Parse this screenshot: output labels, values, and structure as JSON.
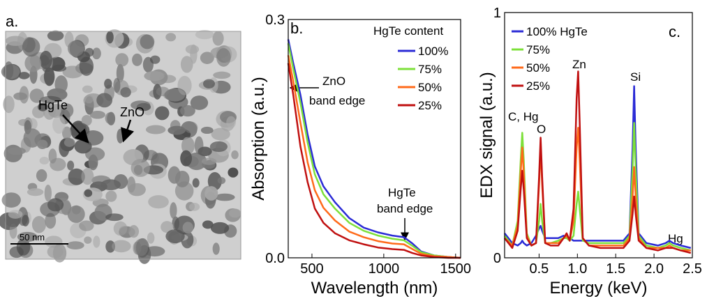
{
  "image_panel": {
    "label": "a.",
    "annotations": [
      "HgTe",
      "ZnO"
    ],
    "scale_bar": "50 nm"
  },
  "chart_data": [
    {
      "type": "line",
      "panel_label": "b.",
      "x_label": "Wavelength (nm)",
      "y_label": "Absorption (a.u.)",
      "legend_title": "HgTe content",
      "annotations": [
        "ZnO",
        "band edge",
        "HgTe",
        "band edge"
      ],
      "xlim": [
        335,
        1535
      ],
      "ylim": [
        0,
        0.3
      ],
      "xticks": [
        500,
        1000,
        1500
      ],
      "yticks": [
        {
          "value": 0,
          "label": "0.0"
        },
        0.3
      ],
      "x": [
        335,
        370,
        420,
        470,
        520,
        580,
        660,
        760,
        860,
        960,
        1060,
        1140,
        1200,
        1260,
        1350,
        1450,
        1535
      ],
      "series": [
        {
          "name": "100%",
          "color": "#2b2bd6",
          "values": [
            0.275,
            0.245,
            0.205,
            0.155,
            0.115,
            0.09,
            0.07,
            0.05,
            0.038,
            0.032,
            0.028,
            0.026,
            0.018,
            0.008,
            0.003,
            0.001,
            0
          ]
        },
        {
          "name": "75%",
          "color": "#7de03a",
          "values": [
            0.27,
            0.238,
            0.195,
            0.145,
            0.105,
            0.08,
            0.062,
            0.044,
            0.034,
            0.028,
            0.024,
            0.022,
            0.015,
            0.007,
            0.003,
            0.001,
            0
          ]
        },
        {
          "name": "50%",
          "color": "#ff6a1a",
          "values": [
            0.255,
            0.222,
            0.17,
            0.12,
            0.085,
            0.063,
            0.047,
            0.033,
            0.026,
            0.021,
            0.018,
            0.017,
            0.011,
            0.005,
            0.002,
            0.001,
            0
          ]
        },
        {
          "name": "25%",
          "color": "#c01010",
          "values": [
            0.245,
            0.205,
            0.14,
            0.095,
            0.062,
            0.044,
            0.031,
            0.022,
            0.017,
            0.013,
            0.011,
            0.01,
            0.006,
            0.003,
            0.001,
            0,
            0
          ]
        }
      ]
    },
    {
      "type": "line",
      "panel_label": "c.",
      "x_label": "Energy (keV)",
      "y_label": "EDX signal (a.u.)",
      "annotations": [
        "C, Hg",
        "O",
        "Zn",
        "Si",
        "Hg"
      ],
      "xlim": [
        0.05,
        2.5
      ],
      "ylim": [
        0,
        1
      ],
      "xticks": [
        0.5,
        {
          "value": 1,
          "label": "1.0"
        },
        1.5,
        {
          "value": 2,
          "label": "2.0"
        },
        2.5
      ],
      "yticks": [
        0,
        1
      ],
      "x": [
        0.05,
        0.15,
        0.22,
        0.26,
        0.28,
        0.3,
        0.34,
        0.4,
        0.46,
        0.5,
        0.52,
        0.54,
        0.58,
        0.65,
        0.75,
        0.82,
        0.86,
        0.9,
        0.95,
        0.99,
        1.01,
        1.03,
        1.07,
        1.15,
        1.3,
        1.45,
        1.6,
        1.68,
        1.72,
        1.74,
        1.76,
        1.8,
        1.9,
        2.05,
        2.15,
        2.2,
        2.25,
        2.35,
        2.48
      ],
      "series": [
        {
          "name": "100% HgTe",
          "color": "#2b2bd6",
          "values": [
            0.1,
            0.06,
            0.05,
            0.06,
            0.07,
            0.06,
            0.05,
            0.06,
            0.09,
            0.12,
            0.13,
            0.11,
            0.08,
            0.08,
            0.08,
            0.09,
            0.08,
            0.08,
            0.07,
            0.07,
            0.07,
            0.07,
            0.07,
            0.07,
            0.07,
            0.07,
            0.07,
            0.1,
            0.45,
            0.7,
            0.45,
            0.1,
            0.06,
            0.05,
            0.06,
            0.07,
            0.06,
            0.05,
            0.04
          ]
        },
        {
          "name": "75%",
          "color": "#7de03a",
          "values": [
            0.09,
            0.05,
            0.15,
            0.4,
            0.51,
            0.4,
            0.1,
            0.05,
            0.06,
            0.15,
            0.22,
            0.15,
            0.06,
            0.06,
            0.07,
            0.08,
            0.08,
            0.07,
            0.09,
            0.22,
            0.27,
            0.2,
            0.07,
            0.06,
            0.06,
            0.06,
            0.06,
            0.09,
            0.36,
            0.55,
            0.36,
            0.09,
            0.05,
            0.04,
            0.05,
            0.06,
            0.05,
            0.04,
            0.03
          ]
        },
        {
          "name": "50%",
          "color": "#ff6a1a",
          "values": [
            0.08,
            0.05,
            0.13,
            0.35,
            0.45,
            0.35,
            0.09,
            0.05,
            0.06,
            0.3,
            0.45,
            0.3,
            0.06,
            0.06,
            0.06,
            0.08,
            0.09,
            0.07,
            0.15,
            0.45,
            0.53,
            0.4,
            0.08,
            0.05,
            0.05,
            0.05,
            0.05,
            0.08,
            0.25,
            0.37,
            0.25,
            0.08,
            0.04,
            0.04,
            0.04,
            0.05,
            0.04,
            0.03,
            0.03
          ]
        },
        {
          "name": "25%",
          "color": "#c01010",
          "values": [
            0.08,
            0.04,
            0.11,
            0.28,
            0.355,
            0.28,
            0.08,
            0.05,
            0.06,
            0.33,
            0.49,
            0.33,
            0.06,
            0.05,
            0.05,
            0.08,
            0.1,
            0.07,
            0.2,
            0.65,
            0.76,
            0.55,
            0.08,
            0.05,
            0.04,
            0.04,
            0.04,
            0.07,
            0.18,
            0.25,
            0.18,
            0.07,
            0.04,
            0.03,
            0.04,
            0.04,
            0.04,
            0.03,
            0.02
          ]
        }
      ]
    }
  ]
}
